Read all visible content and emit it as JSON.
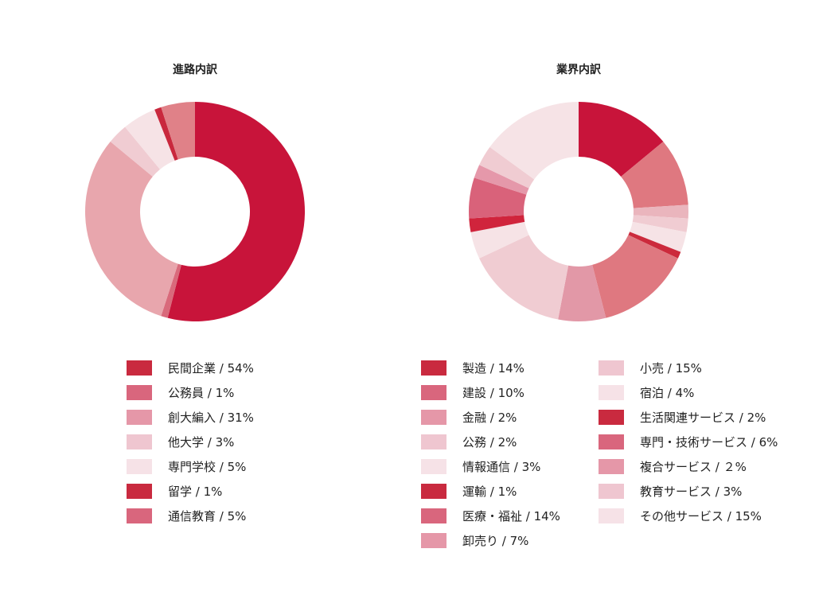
{
  "chart_data": [
    {
      "type": "pie",
      "title": "進路内訳",
      "categories": [
        "民間企業",
        "公務員",
        "創大編入",
        "他大学",
        "専門学校",
        "留学",
        "通信教育"
      ],
      "values": [
        54,
        1,
        31,
        3,
        5,
        1,
        5
      ],
      "slice_colors": [
        "#c8143a",
        "#d96a7b",
        "#e8a6ad",
        "#f0ccd2",
        "#f6e3e6",
        "#c9283d",
        "#e08188"
      ],
      "legend": {
        "labels": [
          "民間企業 / 54%",
          "公務員 / 1%",
          "創大編入 / 31%",
          "他大学 / 3%",
          "専門学校 / 5%",
          "留学 / 1%",
          "通信教育 / 5%"
        ],
        "colors": [
          "#c92a3f",
          "#d9667d",
          "#e597a8",
          "#efc6d0",
          "#f6e2e7",
          "#c92a3f",
          "#d9667d"
        ]
      }
    },
    {
      "type": "pie",
      "title": "業界内訳",
      "categories": [
        "製造",
        "建設",
        "金融",
        "公務",
        "情報通信",
        "運輸",
        "医療・福祉",
        "卸売り",
        "小売",
        "宿泊",
        "生活関連サービス",
        "専門・技術サービス",
        "複合サービス",
        "教育サービス",
        "その他サービス"
      ],
      "values": [
        14,
        10,
        2,
        2,
        3,
        1,
        14,
        7,
        15,
        4,
        2,
        6,
        2,
        3,
        15
      ],
      "slice_colors": [
        "#c8143a",
        "#df7880",
        "#eab5bd",
        "#f0ccd2",
        "#f6e3e6",
        "#cc2a3c",
        "#df7880",
        "#e298a7",
        "#f0ccd2",
        "#f6e3e6",
        "#d0243c",
        "#d9627a",
        "#e598aa",
        "#f0ccd2",
        "#f6e3e6"
      ],
      "legend": {
        "labels": [
          "製造 / 14%",
          "建設 / 10%",
          "金融 / 2%",
          "公務 / 2%",
          "情報通信 / 3%",
          "運輸 / 1%",
          "医療・福祉 / 14%",
          "卸売り / 7%",
          "小売 / 15%",
          "宿泊 / 4%",
          "生活関連サービス / 2%",
          "専門・技術サービス / 6%",
          "複合サービス / ２%",
          "教育サービス / 3%",
          "その他サービス / 15%"
        ],
        "colors": [
          "#c92a3f",
          "#d9667d",
          "#e597a8",
          "#efc6d0",
          "#f6e2e7",
          "#c92a3f",
          "#d9667d",
          "#e597a8",
          "#efc6d0",
          "#f6e2e7",
          "#c92a3f",
          "#d9667d",
          "#e597a8",
          "#efc6d0",
          "#f6e2e7"
        ]
      }
    }
  ]
}
